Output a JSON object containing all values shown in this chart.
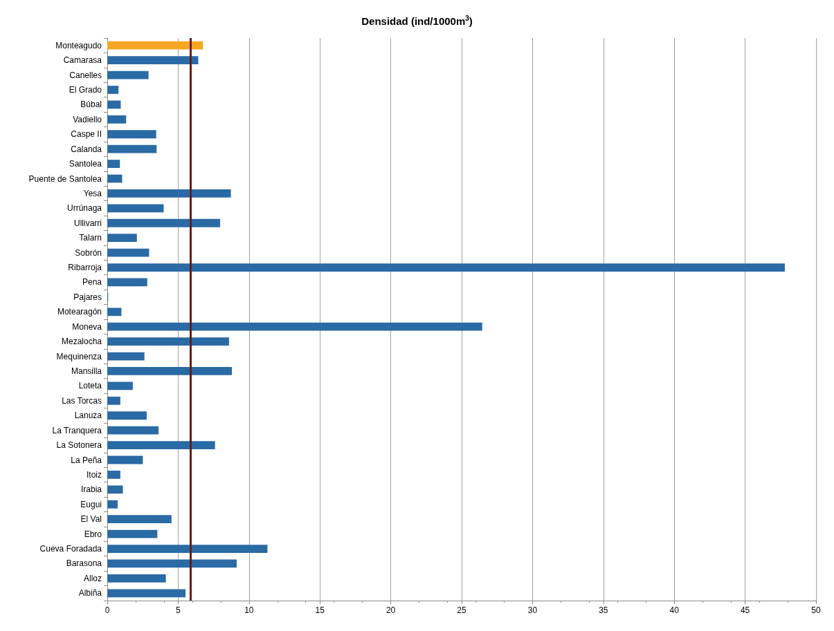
{
  "chart_data": {
    "type": "bar",
    "orientation": "horizontal",
    "title": "Densidad (ind/1000m$^{3}$)",
    "categories": [
      "Monteagudo",
      "Camarasa",
      "Canelles",
      "El Grado",
      "Búbal",
      "Vadiello",
      "Caspe II",
      "Calanda",
      "Santolea",
      "Puente de Santolea",
      "Yesa",
      "Urrúnaga",
      "Ullivarri",
      "Talarn",
      "Sobrón",
      "Ribarroja",
      "Pena",
      "Pajares",
      "Motearagón",
      "Moneva",
      "Mezalocha",
      "Mequinenza",
      "Mansilla",
      "Loteta",
      "Las Torcas",
      "Lanuza",
      "La Tranquera",
      "La Sotonera",
      "La Peña",
      "Itoiz",
      "Irabia",
      "Eugui",
      "El Val",
      "Ebro",
      "Cueva Foradada",
      "Barasona",
      "Alloz",
      "Albiña"
    ],
    "values": [
      6.75,
      6.42,
      2.91,
      0.79,
      0.95,
      1.33,
      3.45,
      3.48,
      0.89,
      1.05,
      8.72,
      3.98,
      7.96,
      2.09,
      2.95,
      47.8,
      2.82,
      0.06,
      1.0,
      26.45,
      8.59,
      2.62,
      8.79,
      1.8,
      0.92,
      2.78,
      3.62,
      7.6,
      2.51,
      0.92,
      1.1,
      0.73,
      4.53,
      3.53,
      11.3,
      9.13,
      4.13,
      5.52
    ],
    "colors": [
      "#f5a623",
      "#2a6aa5",
      "#2a6aa5",
      "#2a6aa5",
      "#2a6aa5",
      "#2a6aa5",
      "#2a6aa5",
      "#2a6aa5",
      "#2a6aa5",
      "#2a6aa5",
      "#2a6aa5",
      "#2a6aa5",
      "#2a6aa5",
      "#2a6aa5",
      "#2a6aa5",
      "#2a6aa5",
      "#2a6aa5",
      "#2a6aa5",
      "#2a6aa5",
      "#2a6aa5",
      "#2a6aa5",
      "#2a6aa5",
      "#2a6aa5",
      "#2a6aa5",
      "#2a6aa5",
      "#2a6aa5",
      "#2a6aa5",
      "#2a6aa5",
      "#2a6aa5",
      "#2a6aa5",
      "#2a6aa5",
      "#2a6aa5",
      "#2a6aa5",
      "#2a6aa5",
      "#2a6aa5",
      "#2a6aa5",
      "#2a6aa5",
      "#2a6aa5"
    ],
    "xlim": [
      0,
      50
    ],
    "xticks": [
      0,
      5,
      10,
      15,
      20,
      25,
      30,
      35,
      40,
      45,
      50
    ],
    "grid": "x",
    "ref_lines": [
      {
        "axis": "x",
        "value": 5.86,
        "color": "#6b1a1a"
      }
    ]
  }
}
